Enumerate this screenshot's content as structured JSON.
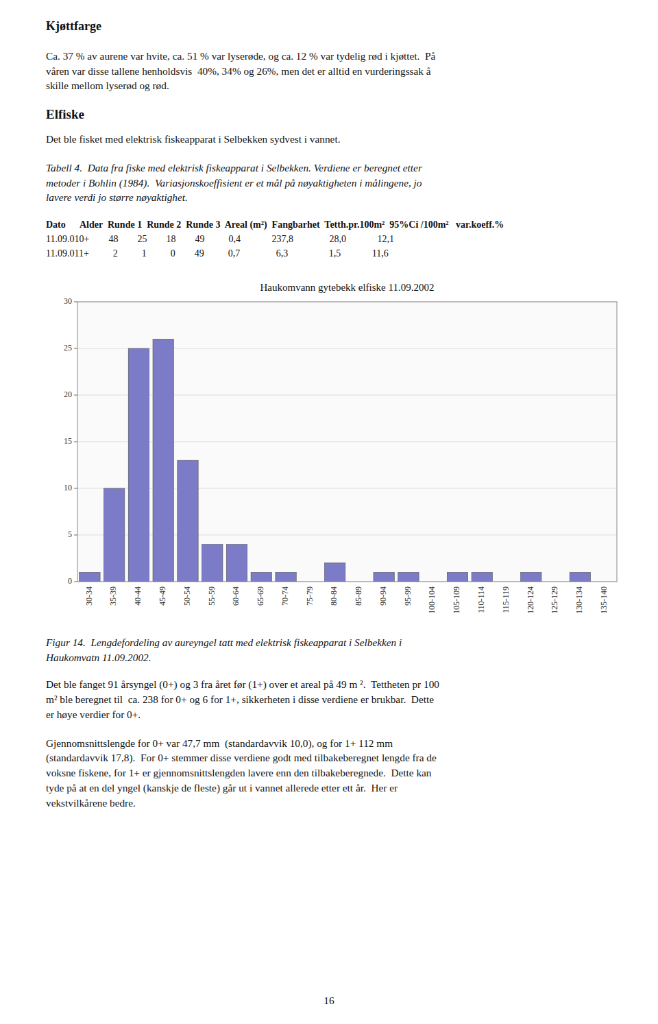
{
  "page_title": "Kjøttfarge",
  "paragraph1": "Ca. 37 % av aurene var hvite, ca. 51 % var lyserøde, og ca. 12 % var tydelig rød i kjøttet.  På\nvåren var disse tallene henholdsvis  40%, 34% og 26%, men det er alltid en vurderingssak å\nskille mellom lyserød og rød.",
  "section_title": "Elfiske",
  "paragraph2": "Det ble fisket med elektrisk fiskeapparat i Selbekken sydvest i vannet.",
  "table_caption": "Tabell 4.  Data fra fiske med elektrisk fiskeapparat i Selbekken. Verdiene er beregnet etter\nmetoder i Bohlin (1984).  Variasjonskoeffisient er et mål på nøyaktigheten i målingene, jo\nlavere verdi jo større nøyaktighet.",
  "table_header": "Dato      Alder  Runde 1  Runde 2  Runde 3  Areal (m²)  Fangbarhet  Tetth.pr.100m²  95%Ci /100m²   var.koeff.%",
  "table_row1": "11.09.010+        48        25        18        49          0,4             237,8               28,0             12,1",
  "table_row2": "11.09.011+          2          1          0        49          0,7               6,3                 1,5             11,6",
  "chart_data": {
    "type": "bar",
    "title": "Haukomvann gytebekk elfiske 11.09.2002",
    "categories": [
      "30-34",
      "35-39",
      "40-44",
      "45-49",
      "50-54",
      "55-59",
      "60-64",
      "65-69",
      "70-74",
      "75-79",
      "80-84",
      "85-89",
      "90-94",
      "95-99",
      "100-104",
      "105-109",
      "110-114",
      "115-119",
      "120-124",
      "125-129",
      "130-134",
      "135-140"
    ],
    "values": [
      1,
      10,
      25,
      26,
      13,
      4,
      4,
      1,
      1,
      0,
      2,
      0,
      1,
      1,
      0,
      1,
      1,
      0,
      1,
      0,
      1,
      0
    ],
    "color": "#7b7bc8",
    "ylim": [
      0,
      30
    ],
    "yticks": [
      0,
      5,
      10,
      15,
      20,
      25,
      30
    ],
    "grid": true
  },
  "fig_caption": "Figur 14.  Lengdefordeling av aureyngel tatt med elektrisk fiskeapparat i Selbekken i\nHaukomvatn 11.09.2002.",
  "paragraph3": "Det ble fanget 91 årsyngel (0+) og 3 fra året før (1+) over et areal på 49 m ².  Tettheten pr 100\nm² ble beregnet til  ca. 238 for 0+ og 6 for 1+, sikkerheten i disse verdiene er brukbar.  Dette\ner høye verdier for 0+.",
  "paragraph4": "Gjennomsnittslengde for 0+ var 47,7 mm  (standardavvik 10,0), og for 1+ 112 mm\n(standardavvik 17,8).  For 0+ stemmer disse verdiene godt med tilbakeberegnet lengde fra de\nvoksne fiskene, for 1+ er gjennomsnittslengden lavere enn den tilbakeberegnede.  Dette kan\ntyde på at en del yngel (kanskje de fleste) går ut i vannet allerede etter ett år.  Her er\nvekstvilkårene bedre.",
  "page_number": "16"
}
